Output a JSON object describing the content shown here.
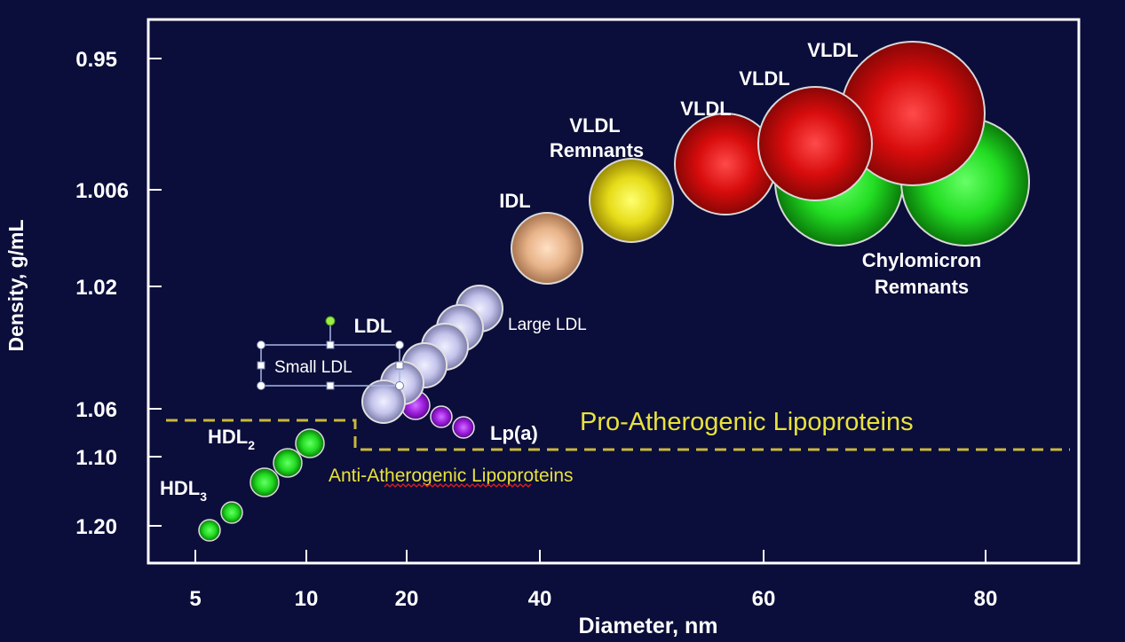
{
  "chart_data": {
    "type": "scatter",
    "xlabel": "Diameter, nm",
    "ylabel": "Density, g/mL",
    "x_ticks": [
      "5",
      "10",
      "20",
      "40",
      "60",
      "80"
    ],
    "y_ticks": [
      "0.95",
      "1.006",
      "1.02",
      "1.06",
      "1.10",
      "1.20"
    ],
    "labels": {
      "vldl_1": "VLDL",
      "vldl_2": "VLDL",
      "vldl_3": "VLDL",
      "vldl_remnants_line1": "VLDL",
      "vldl_remnants_line2": "Remnants",
      "idl": "IDL",
      "chylo_line1": "Chylomicron",
      "chylo_line2": "Remnants",
      "ldl": "LDL",
      "large_ldl": "Large LDL",
      "small_ldl": "Small LDL",
      "lpa": "Lp(a)",
      "hdl2_main": "HDL",
      "hdl2_sub": "2",
      "hdl3_main": "HDL",
      "hdl3_sub": "3"
    },
    "annotations": {
      "pro": "Pro-Atherogenic Lipoproteins",
      "anti_part1": "Anti-",
      "anti_part2": "Atherogenic",
      "anti_part3": " Lipoproteins"
    },
    "particles": [
      {
        "name": "chylomicron-remnant",
        "x": 64,
        "y": 1.003,
        "color": "green"
      },
      {
        "name": "chylomicron-remnant",
        "x": 75,
        "y": 1.003,
        "color": "green"
      },
      {
        "name": "vldl",
        "x": 78,
        "y": 0.985,
        "color": "red"
      },
      {
        "name": "vldl",
        "x": 66,
        "y": 0.99,
        "color": "red"
      },
      {
        "name": "vldl",
        "x": 58,
        "y": 0.998,
        "color": "red"
      },
      {
        "name": "vldl-remnant",
        "x": 50,
        "y": 1.006,
        "color": "yellow"
      },
      {
        "name": "idl",
        "x": 41,
        "y": 1.012,
        "color": "tan"
      },
      {
        "name": "large-ldl",
        "x": 28,
        "y": 1.025,
        "color": "lavender"
      },
      {
        "name": "ldl",
        "x": 26,
        "y": 1.03,
        "color": "lavender"
      },
      {
        "name": "ldl",
        "x": 24,
        "y": 1.037,
        "color": "lavender"
      },
      {
        "name": "ldl",
        "x": 21,
        "y": 1.045,
        "color": "lavender"
      },
      {
        "name": "small-ldl",
        "x": 19,
        "y": 1.052,
        "color": "lavender"
      },
      {
        "name": "small-ldl",
        "x": 17,
        "y": 1.058,
        "color": "lavender"
      },
      {
        "name": "lpa",
        "x": 20,
        "y": 1.059,
        "color": "purple"
      },
      {
        "name": "lpa",
        "x": 22,
        "y": 1.065,
        "color": "purple"
      },
      {
        "name": "lpa",
        "x": 25,
        "y": 1.072,
        "color": "purple"
      },
      {
        "name": "hdl2",
        "x": 10,
        "y": 1.08,
        "color": "green"
      },
      {
        "name": "hdl2",
        "x": 9,
        "y": 1.1,
        "color": "green"
      },
      {
        "name": "hdl2",
        "x": 8,
        "y": 1.12,
        "color": "green"
      },
      {
        "name": "hdl3",
        "x": 6.5,
        "y": 1.15,
        "color": "green"
      },
      {
        "name": "hdl3",
        "x": 5.5,
        "y": 1.21,
        "color": "green"
      }
    ],
    "colors": {
      "background": "#0b0d3a",
      "axis": "#ffffff",
      "divider": "#c8b83c",
      "pro_text": "#e8e23a",
      "anti_text": "#e8e23a",
      "green": "#22dd22",
      "red": "#e01010",
      "yellow": "#e8e020",
      "tan": "#e8b890",
      "lavender": "#c8c8f0",
      "purple": "#a020e0"
    }
  }
}
